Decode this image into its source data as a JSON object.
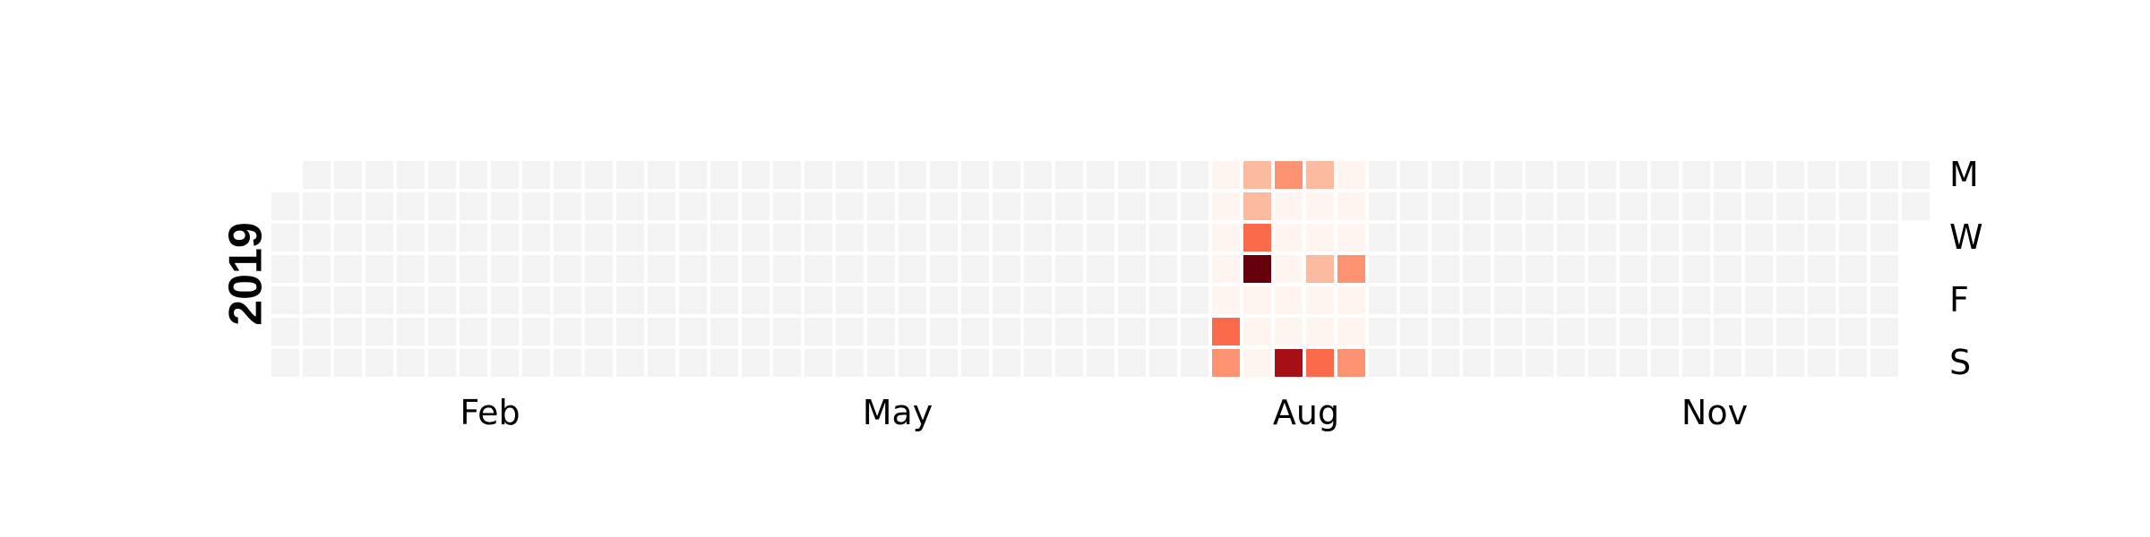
{
  "chart_data": {
    "type": "heatmap",
    "title": "",
    "year": "2019",
    "month_labels": [
      "Feb",
      "May",
      "Aug",
      "Nov"
    ],
    "day_labels": [
      "M",
      "W",
      "F",
      "S"
    ],
    "colors": {
      "empty": "#f3f3f3",
      "scale": [
        "#fff5f0",
        "#fee0d2",
        "#fcbba1",
        "#fc9272",
        "#fb6a4a",
        "#ef3b2c",
        "#cb181d",
        "#a50f15",
        "#67000d"
      ]
    },
    "values": [
      {
        "date": "2019-07-29",
        "value": 0.3
      },
      {
        "date": "2019-07-30",
        "value": 0.3
      },
      {
        "date": "2019-07-31",
        "value": 0.3
      },
      {
        "date": "2019-08-01",
        "value": 0.3
      },
      {
        "date": "2019-08-02",
        "value": 0.3
      },
      {
        "date": "2019-08-03",
        "value": 5
      },
      {
        "date": "2019-08-04",
        "value": 4
      },
      {
        "date": "2019-08-05",
        "value": 2
      },
      {
        "date": "2019-08-06",
        "value": 3
      },
      {
        "date": "2019-08-07",
        "value": 5
      },
      {
        "date": "2019-08-08",
        "value": 10
      },
      {
        "date": "2019-08-09",
        "value": 0.5
      },
      {
        "date": "2019-08-10",
        "value": 0.5
      },
      {
        "date": "2019-08-11",
        "value": 0.5
      },
      {
        "date": "2019-08-12",
        "value": 4.2
      },
      {
        "date": "2019-08-13",
        "value": 0.5
      },
      {
        "date": "2019-08-14",
        "value": 0.5
      },
      {
        "date": "2019-08-15",
        "value": 0.5
      },
      {
        "date": "2019-08-16",
        "value": 0.5
      },
      {
        "date": "2019-08-17",
        "value": 0.5
      },
      {
        "date": "2019-08-18",
        "value": 8.5
      },
      {
        "date": "2019-08-19",
        "value": 2
      },
      {
        "date": "2019-08-20",
        "value": 0.5
      },
      {
        "date": "2019-08-21",
        "value": 0.5
      },
      {
        "date": "2019-08-22",
        "value": 2
      },
      {
        "date": "2019-08-23",
        "value": 0.5
      },
      {
        "date": "2019-08-24",
        "value": 0.5
      },
      {
        "date": "2019-08-25",
        "value": 5
      },
      {
        "date": "2019-08-26",
        "value": 0.5
      },
      {
        "date": "2019-08-27",
        "value": 0.5
      },
      {
        "date": "2019-08-28",
        "value": 0.5
      },
      {
        "date": "2019-08-29",
        "value": 3.5
      },
      {
        "date": "2019-08-30",
        "value": 0.5
      },
      {
        "date": "2019-08-31",
        "value": 0.5
      },
      {
        "date": "2019-09-01",
        "value": 3.5
      }
    ],
    "vmax": 10
  }
}
